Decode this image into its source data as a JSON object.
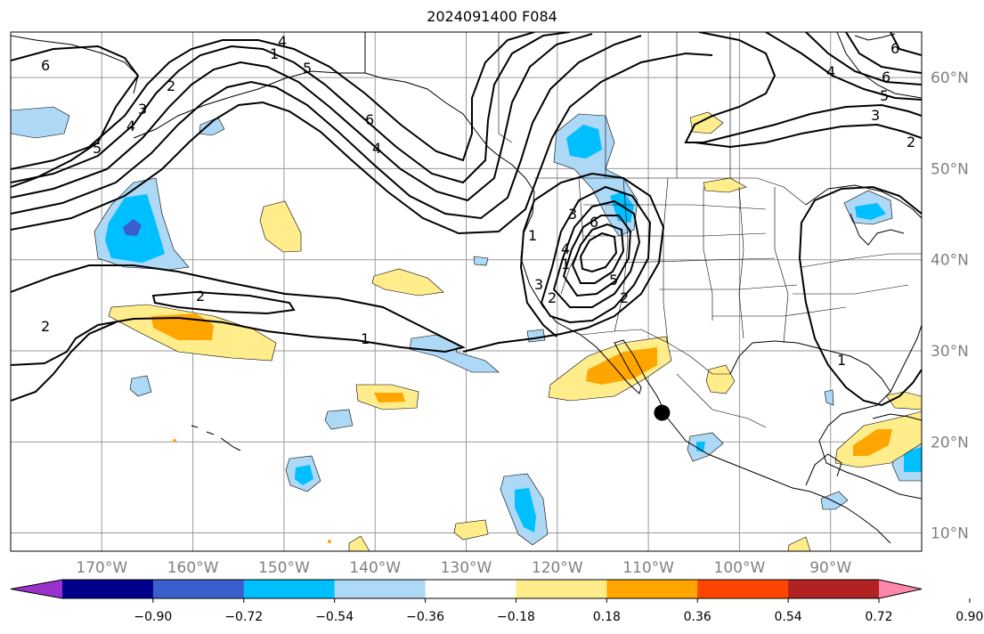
{
  "title": "2024091400 F084",
  "map": {
    "lon_range": [
      -180,
      -80
    ],
    "lat_range": [
      8,
      65
    ],
    "lon_ticks": [
      {
        "value": -170,
        "label": "170°W"
      },
      {
        "value": -160,
        "label": "160°W"
      },
      {
        "value": -150,
        "label": "150°W"
      },
      {
        "value": -140,
        "label": "140°W"
      },
      {
        "value": -130,
        "label": "130°W"
      },
      {
        "value": -120,
        "label": "120°W"
      },
      {
        "value": -110,
        "label": "110°W"
      },
      {
        "value": -100,
        "label": "100°W"
      },
      {
        "value": -90,
        "label": "90°W"
      }
    ],
    "lat_ticks": [
      {
        "value": 10,
        "label": "10°N"
      },
      {
        "value": 20,
        "label": "20°N"
      },
      {
        "value": 30,
        "label": "30°N"
      },
      {
        "value": 40,
        "label": "40°N"
      },
      {
        "value": 50,
        "label": "50°N"
      },
      {
        "value": 60,
        "label": "60°N"
      }
    ],
    "marker": {
      "lon": -108.5,
      "lat": 23.2
    }
  },
  "colorbar": {
    "ticks": [
      "−0.90",
      "−0.72",
      "−0.54",
      "−0.36",
      "−0.18",
      "0.18",
      "0.36",
      "0.54",
      "0.72",
      "0.90"
    ],
    "colors": [
      "#9932cc",
      "#00008b",
      "#3a5fcd",
      "#00bfff",
      "#add8f6",
      "#ffffff",
      "#ffec8b",
      "#ffa500",
      "#ff4500",
      "#b22222",
      "#ff88aa"
    ]
  },
  "contour_labels": [
    "6",
    "5",
    "4",
    "3",
    "2",
    "1",
    "6",
    "4",
    "3",
    "2",
    "1",
    "6",
    "5",
    "4",
    "3",
    "2",
    "1",
    "2",
    "1",
    "2",
    "4",
    "5",
    "6",
    "1",
    "2",
    "3",
    "4",
    "5",
    "6"
  ]
}
